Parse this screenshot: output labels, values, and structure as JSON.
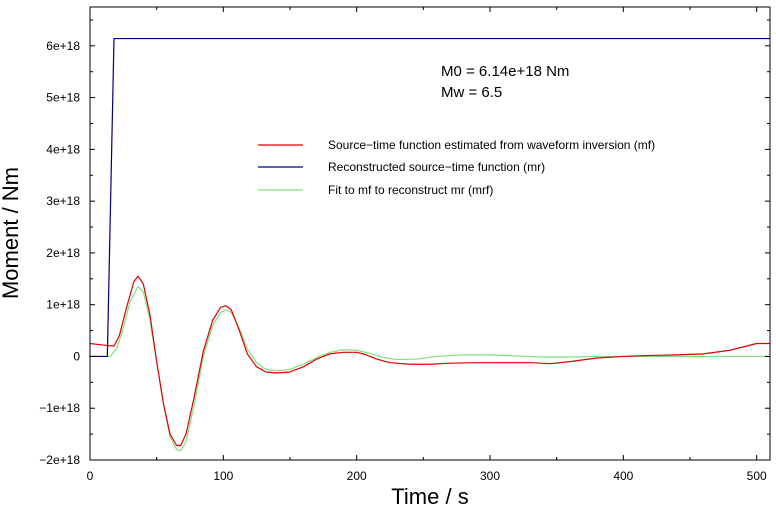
{
  "chart_data": {
    "type": "line",
    "title": "",
    "xlabel": "Time / s",
    "ylabel": "Moment / Nm",
    "xlim": [
      0,
      510
    ],
    "ylim": [
      -2e+18,
      6.75e+18
    ],
    "grid": false,
    "legend_position": "center-right",
    "x_ticks": [
      0,
      100,
      200,
      300,
      400,
      500
    ],
    "x_tick_labels": [
      "0",
      "100",
      "200",
      "300",
      "400",
      "500"
    ],
    "y_ticks": [
      -2e+18,
      -1e+18,
      0,
      1e+18,
      2e+18,
      3e+18,
      4e+18,
      5e+18,
      6e+18
    ],
    "y_tick_labels": [
      "−2e+18",
      "−1e+18",
      "0",
      "1e+18",
      "2e+18",
      "3e+18",
      "4e+18",
      "5e+18",
      "6e+18"
    ],
    "annotations": [
      "M0 = 6.14e+18 Nm",
      "Mw = 6.5"
    ],
    "series": [
      {
        "name": "Source−time function estimated from waveform inversion (mf)",
        "color": "#e00000",
        "x": [
          0,
          10,
          18,
          22,
          28,
          33,
          36,
          40,
          45,
          50,
          55,
          60,
          65,
          68,
          72,
          78,
          85,
          92,
          98,
          102,
          106,
          112,
          118,
          125,
          132,
          140,
          150,
          160,
          170,
          180,
          190,
          200,
          205,
          215,
          225,
          240,
          255,
          270,
          290,
          310,
          330,
          345,
          360,
          380,
          400,
          420,
          440,
          460,
          480,
          500,
          510
        ],
        "y": [
          2.5e+17,
          2.2e+17,
          2e+17,
          4e+17,
          1e+18,
          1.45e+18,
          1.55e+18,
          1.4e+18,
          8e+17,
          -1e+17,
          -9e+17,
          -1.5e+18,
          -1.72e+18,
          -1.72e+18,
          -1.5e+18,
          -8e+17,
          1e+17,
          7e+17,
          9.5e+17,
          9.8e+17,
          9e+17,
          5e+17,
          5e+16,
          -2e+17,
          -3e+17,
          -3.2e+17,
          -3e+17,
          -2e+17,
          -5e+16,
          5e+16,
          8e+16,
          8e+16,
          5e+16,
          -5e+16,
          -1.2e+17,
          -1.5e+17,
          -1.5e+17,
          -1.3e+17,
          -1.2e+17,
          -1.2e+17,
          -1.2e+17,
          -1.4e+17,
          -1e+17,
          -3e+16,
          0.0,
          2e+16,
          3e+16,
          5e+16,
          1.2e+17,
          2.5e+17,
          2.5e+17
        ]
      },
      {
        "name": "Reconstructed source−time function (mr)",
        "color": "#000080",
        "x": [
          0,
          13,
          18,
          510
        ],
        "y": [
          0,
          0,
          6.14e+18,
          6.14e+18
        ]
      },
      {
        "name": "Fit to mf to reconstruct mr (mrf)",
        "color": "#80e080",
        "x": [
          0,
          15,
          20,
          25,
          30,
          36,
          40,
          45,
          50,
          55,
          60,
          65,
          68,
          72,
          78,
          85,
          92,
          98,
          102,
          106,
          112,
          118,
          125,
          132,
          140,
          150,
          160,
          170,
          180,
          190,
          200,
          210,
          220,
          230,
          245,
          260,
          280,
          300,
          320,
          340,
          360,
          380,
          400,
          430,
          460,
          490,
          510
        ],
        "y": [
          0,
          0,
          1.5e+17,
          5.5e+17,
          1.05e+18,
          1.35e+18,
          1.25e+18,
          7e+17,
          -1e+17,
          -9e+17,
          -1.55e+18,
          -1.8e+18,
          -1.82e+18,
          -1.65e+18,
          -9.5e+17,
          0.0,
          6e+17,
          8.5e+17,
          9e+17,
          8.5e+17,
          5.5e+17,
          1.5e+17,
          -1.2e+17,
          -2.5e+17,
          -2.8e+17,
          -2.5e+17,
          -1.5e+17,
          -2e+16,
          8e+16,
          1.3e+17,
          1.2e+17,
          6e+16,
          -2e+16,
          -6e+16,
          -5e+16,
          0.0,
          3e+16,
          3e+16,
          1e+16,
          -1e+16,
          -1e+16,
          0.0,
          0.0,
          0.0,
          0.0,
          0.0,
          0.0
        ]
      }
    ]
  }
}
